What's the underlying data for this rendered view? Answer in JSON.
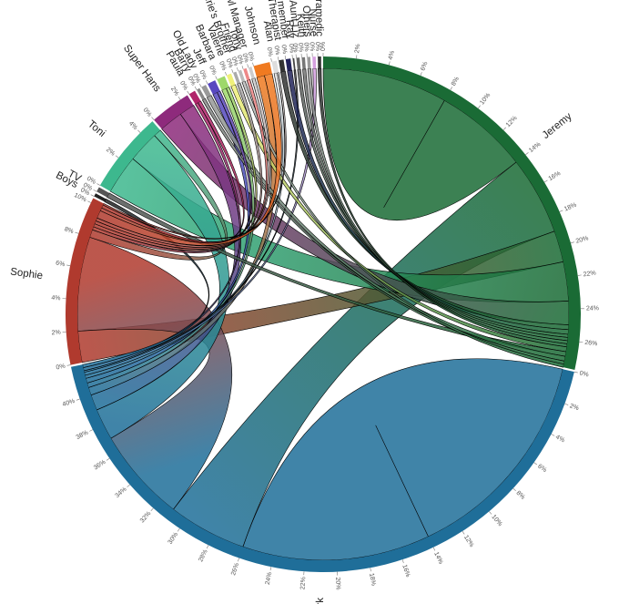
{
  "chart_data": {
    "type": "chord",
    "groups": [
      {
        "name": "Jeremy",
        "color": "#1a6b35",
        "value": 27.7
      },
      {
        "name": "Mark",
        "color": "#1f6e99",
        "value": 42
      },
      {
        "name": "Sophie",
        "color": "#b03a2e",
        "value": 10.3
      },
      {
        "name": "Boys",
        "color": "#222222",
        "value": 0.2
      },
      {
        "name": "TV",
        "color": "#555555",
        "value": 0.3
      },
      {
        "name": "Toni",
        "color": "#3db88e",
        "value": 5
      },
      {
        "name": "Super Hans",
        "color": "#8e2a7c",
        "value": 2.5
      },
      {
        "name": "Paula",
        "color": "#b0246a",
        "value": 0.4
      },
      {
        "name": "Barry",
        "color": "#888888",
        "value": 0.2
      },
      {
        "name": "Old Lady",
        "color": "#999999",
        "value": 0.3
      },
      {
        "name": "Jeff",
        "color": "#5848c0",
        "value": 0.5
      },
      {
        "name": "Barbara",
        "color": "#9ed86a",
        "value": 0.5
      },
      {
        "name": "Valerie",
        "color": "#f0f07a",
        "value": 0.3
      },
      {
        "name": "Valerie's Brother",
        "color": "#aaaaaa",
        "value": 0.2
      },
      {
        "name": "Friend",
        "color": "#bbbbbb",
        "value": 0.2
      },
      {
        "name": "Tony",
        "color": "#ee8888",
        "value": 0.2
      },
      {
        "name": "Lazerbowl Manager",
        "color": "#cccccc",
        "value": 0.2
      },
      {
        "name": "Johnson",
        "color": "#f07a20",
        "value": 1
      },
      {
        "name": "Alan",
        "color": "#dddddd",
        "value": 0.3
      },
      {
        "name": "Therapist",
        "color": "#333333",
        "value": 0.3
      },
      {
        "name": "Band member",
        "color": "#22225a",
        "value": 0.3
      },
      {
        "name": "Ray",
        "color": "#444444",
        "value": 0.1
      },
      {
        "name": "Aunt Liz",
        "color": "#666666",
        "value": 0.2
      },
      {
        "name": "Keith",
        "color": "#777777",
        "value": 0.2
      },
      {
        "name": "Others",
        "color": "#999999",
        "value": 0.2
      },
      {
        "name": "Nurse",
        "color": "#d6a0e0",
        "value": 0.2
      },
      {
        "name": "Paramedic",
        "color": "#333333",
        "value": 0.2
      }
    ],
    "chords": [
      {
        "source": "Jeremy",
        "target": "Jeremy",
        "values": [
          8,
          6
        ]
      },
      {
        "source": "Mark",
        "target": "Mark",
        "values": [
          14,
          12
        ]
      },
      {
        "source": "Jeremy",
        "target": "Mark",
        "values": [
          5,
          5
        ]
      },
      {
        "source": "Jeremy",
        "target": "Sophie",
        "values": [
          2,
          2
        ]
      },
      {
        "source": "Jeremy",
        "target": "Toni",
        "values": [
          2.5,
          2.5
        ]
      },
      {
        "source": "Jeremy",
        "target": "Super Hans",
        "values": [
          1.5,
          1.5
        ]
      },
      {
        "source": "Mark",
        "target": "Sophie",
        "values": [
          6,
          6
        ]
      },
      {
        "source": "Mark",
        "target": "Toni",
        "values": [
          2,
          2
        ]
      },
      {
        "source": "Mark",
        "target": "Super Hans",
        "values": [
          1,
          1
        ]
      },
      {
        "source": "Sophie",
        "target": "Toni",
        "values": [
          0.5,
          0.5
        ]
      },
      {
        "source": "Mark",
        "target": "Johnson",
        "values": [
          0.5,
          0.5
        ]
      },
      {
        "source": "Mark",
        "target": "Barbara",
        "values": [
          0.3,
          0.3
        ]
      },
      {
        "source": "Mark",
        "target": "Jeff",
        "values": [
          0.3,
          0.3
        ]
      },
      {
        "source": "Mark",
        "target": "Alan",
        "values": [
          0.2,
          0.2
        ]
      },
      {
        "source": "Mark",
        "target": "Nurse",
        "values": [
          0.2,
          0.2
        ]
      },
      {
        "source": "Mark",
        "target": "Ray",
        "values": [
          0.1,
          0.1
        ]
      },
      {
        "source": "Mark",
        "target": "Paula",
        "values": [
          0.2,
          0.2
        ]
      },
      {
        "source": "Mark",
        "target": "Boys",
        "values": [
          0.2,
          0.2
        ]
      },
      {
        "source": "Jeremy",
        "target": "Therapist",
        "values": [
          0.3,
          0.3
        ]
      },
      {
        "source": "Jeremy",
        "target": "Band member",
        "values": [
          0.3,
          0.3
        ]
      },
      {
        "source": "Jeremy",
        "target": "Aunt Liz",
        "values": [
          0.2,
          0.2
        ]
      },
      {
        "source": "Jeremy",
        "target": "Keith",
        "values": [
          0.2,
          0.2
        ]
      },
      {
        "source": "Jeremy",
        "target": "Others",
        "values": [
          0.2,
          0.2
        ]
      },
      {
        "source": "Jeremy",
        "target": "Paramedic",
        "values": [
          0.2,
          0.2
        ]
      },
      {
        "source": "Jeremy",
        "target": "Valerie",
        "values": [
          0.3,
          0.3
        ]
      },
      {
        "source": "Jeremy",
        "target": "TV",
        "values": [
          0.3,
          0.3
        ]
      },
      {
        "source": "Jeremy",
        "target": "Old Lady",
        "values": [
          0.3,
          0.3
        ]
      },
      {
        "source": "Jeremy",
        "target": "Barry",
        "values": [
          0.2,
          0.2
        ]
      },
      {
        "source": "Jeremy",
        "target": "Friend",
        "values": [
          0.2,
          0.2
        ]
      },
      {
        "source": "Sophie",
        "target": "Jeff",
        "values": [
          0.2,
          0.2
        ]
      },
      {
        "source": "Sophie",
        "target": "Valerie's Brother",
        "values": [
          0.2,
          0.2
        ]
      },
      {
        "source": "Sophie",
        "target": "Tony",
        "values": [
          0.2,
          0.2
        ]
      },
      {
        "source": "Sophie",
        "target": "Lazerbowl Manager",
        "values": [
          0.2,
          0.2
        ]
      },
      {
        "source": "Sophie",
        "target": "Johnson",
        "values": [
          0.5,
          0.5
        ]
      },
      {
        "source": "Sophie",
        "target": "Barbara",
        "values": [
          0.2,
          0.2
        ]
      },
      {
        "source": "Sophie",
        "target": "Paula",
        "values": [
          0.2,
          0.2
        ]
      },
      {
        "source": "Sophie",
        "target": "Alan",
        "values": [
          0.1,
          0.1
        ]
      }
    ],
    "ticks": [
      {
        "value": 0,
        "label": "0%"
      },
      {
        "value": 2,
        "label": "2%"
      },
      {
        "value": 4,
        "label": "4%"
      },
      {
        "value": 6,
        "label": "6%"
      },
      {
        "value": 8,
        "label": "8%"
      },
      {
        "value": 10,
        "label": "10%"
      },
      {
        "value": 12,
        "label": "12%"
      },
      {
        "value": 14,
        "label": "14%"
      },
      {
        "value": 16,
        "label": "16%"
      },
      {
        "value": 18,
        "label": "18%"
      },
      {
        "value": 20,
        "label": "20%"
      },
      {
        "value": 22,
        "label": "22%"
      },
      {
        "value": 24,
        "label": "24%"
      },
      {
        "value": 26,
        "label": "26%"
      },
      {
        "value": 28,
        "label": "28%"
      },
      {
        "value": 30,
        "label": "30%"
      },
      {
        "value": 32,
        "label": "32%"
      },
      {
        "value": 34,
        "label": "34%"
      },
      {
        "value": 36,
        "label": "36%"
      },
      {
        "value": 38,
        "label": "38%"
      },
      {
        "value": 40,
        "label": "40%"
      }
    ]
  }
}
